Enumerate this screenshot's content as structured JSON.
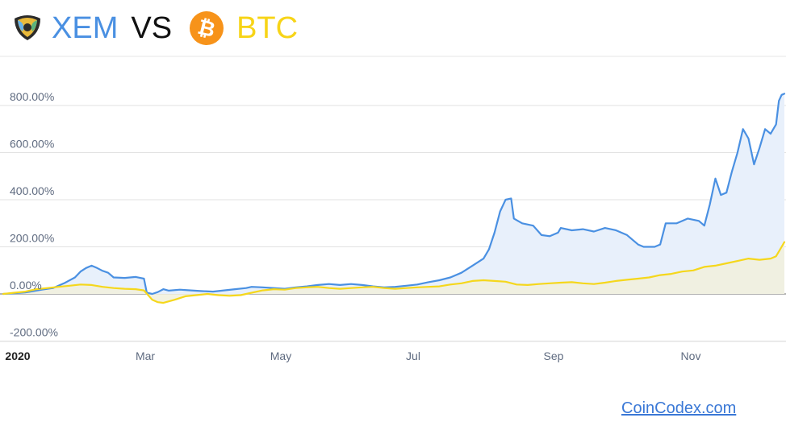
{
  "header": {
    "coin1": {
      "name": "XEM",
      "icon": "nem-xem-logo-icon",
      "color": "#4a90e2"
    },
    "vs": "VS",
    "coin2": {
      "name": "BTC",
      "icon": "bitcoin-logo-icon",
      "color": "#f7931a",
      "text_color": "#f7d417"
    }
  },
  "footer": {
    "link_text": "CoinCodex.com",
    "color": "#3a78d6"
  },
  "chart_data": {
    "type": "area",
    "x_axis": {
      "ticks": [
        "2020",
        "Mar",
        "May",
        "Jul",
        "Sep",
        "Nov"
      ]
    },
    "y_axis": {
      "ticks": [
        "-200.00%",
        "0.00%",
        "200.00%",
        "400.00%",
        "600.00%",
        "800.00%"
      ],
      "range": [
        -200,
        800
      ],
      "unit": "%"
    },
    "grid": true,
    "legend": "none",
    "series": [
      {
        "name": "XEM",
        "color": "#4a90e2",
        "fill": "#e8f0fb",
        "points": [
          [
            0,
            0
          ],
          [
            4,
            3
          ],
          [
            8,
            6
          ],
          [
            10,
            10
          ],
          [
            14,
            18
          ],
          [
            18,
            25
          ],
          [
            22,
            45
          ],
          [
            26,
            70
          ],
          [
            28,
            95
          ],
          [
            30,
            110
          ],
          [
            32,
            120
          ],
          [
            34,
            110
          ],
          [
            36,
            98
          ],
          [
            38,
            90
          ],
          [
            40,
            70
          ],
          [
            44,
            68
          ],
          [
            48,
            72
          ],
          [
            51,
            65
          ],
          [
            52,
            5
          ],
          [
            54,
            0
          ],
          [
            56,
            8
          ],
          [
            58,
            20
          ],
          [
            60,
            14
          ],
          [
            64,
            18
          ],
          [
            68,
            15
          ],
          [
            72,
            12
          ],
          [
            76,
            10
          ],
          [
            80,
            15
          ],
          [
            84,
            20
          ],
          [
            88,
            25
          ],
          [
            90,
            30
          ],
          [
            94,
            28
          ],
          [
            98,
            25
          ],
          [
            102,
            22
          ],
          [
            106,
            28
          ],
          [
            110,
            32
          ],
          [
            114,
            38
          ],
          [
            118,
            42
          ],
          [
            122,
            38
          ],
          [
            126,
            42
          ],
          [
            130,
            38
          ],
          [
            134,
            32
          ],
          [
            138,
            28
          ],
          [
            142,
            30
          ],
          [
            146,
            35
          ],
          [
            150,
            40
          ],
          [
            154,
            50
          ],
          [
            158,
            58
          ],
          [
            162,
            70
          ],
          [
            166,
            90
          ],
          [
            170,
            120
          ],
          [
            174,
            150
          ],
          [
            176,
            190
          ],
          [
            178,
            260
          ],
          [
            180,
            350
          ],
          [
            182,
            400
          ],
          [
            184,
            405
          ],
          [
            185,
            320
          ],
          [
            188,
            300
          ],
          [
            192,
            290
          ],
          [
            195,
            250
          ],
          [
            198,
            245
          ],
          [
            201,
            260
          ],
          [
            202,
            280
          ],
          [
            206,
            270
          ],
          [
            210,
            275
          ],
          [
            214,
            265
          ],
          [
            218,
            280
          ],
          [
            222,
            270
          ],
          [
            226,
            250
          ],
          [
            230,
            210
          ],
          [
            232,
            200
          ],
          [
            236,
            200
          ],
          [
            238,
            210
          ],
          [
            240,
            300
          ],
          [
            244,
            300
          ],
          [
            248,
            320
          ],
          [
            252,
            310
          ],
          [
            254,
            290
          ],
          [
            256,
            380
          ],
          [
            258,
            490
          ],
          [
            260,
            420
          ],
          [
            262,
            430
          ],
          [
            264,
            520
          ],
          [
            266,
            600
          ],
          [
            268,
            700
          ],
          [
            270,
            660
          ],
          [
            272,
            550
          ],
          [
            274,
            620
          ],
          [
            276,
            700
          ],
          [
            278,
            680
          ],
          [
            280,
            720
          ],
          [
            281,
            820
          ],
          [
            282,
            845
          ],
          [
            283,
            850
          ]
        ]
      },
      {
        "name": "BTC",
        "color": "#f5d71c",
        "fill": "#f1f0dc",
        "points": [
          [
            0,
            0
          ],
          [
            4,
            5
          ],
          [
            8,
            10
          ],
          [
            12,
            20
          ],
          [
            16,
            25
          ],
          [
            20,
            30
          ],
          [
            24,
            35
          ],
          [
            28,
            40
          ],
          [
            32,
            38
          ],
          [
            36,
            30
          ],
          [
            40,
            25
          ],
          [
            44,
            22
          ],
          [
            48,
            20
          ],
          [
            51,
            15
          ],
          [
            54,
            -25
          ],
          [
            56,
            -35
          ],
          [
            58,
            -38
          ],
          [
            62,
            -25
          ],
          [
            66,
            -10
          ],
          [
            70,
            -5
          ],
          [
            74,
            0
          ],
          [
            78,
            -5
          ],
          [
            82,
            -8
          ],
          [
            86,
            -5
          ],
          [
            90,
            5
          ],
          [
            94,
            15
          ],
          [
            98,
            20
          ],
          [
            102,
            18
          ],
          [
            106,
            25
          ],
          [
            110,
            28
          ],
          [
            114,
            30
          ],
          [
            118,
            25
          ],
          [
            122,
            22
          ],
          [
            126,
            25
          ],
          [
            130,
            28
          ],
          [
            134,
            30
          ],
          [
            138,
            25
          ],
          [
            142,
            22
          ],
          [
            146,
            25
          ],
          [
            150,
            28
          ],
          [
            154,
            30
          ],
          [
            158,
            32
          ],
          [
            162,
            40
          ],
          [
            166,
            45
          ],
          [
            170,
            55
          ],
          [
            174,
            58
          ],
          [
            178,
            55
          ],
          [
            182,
            52
          ],
          [
            186,
            40
          ],
          [
            190,
            38
          ],
          [
            194,
            42
          ],
          [
            198,
            45
          ],
          [
            202,
            48
          ],
          [
            206,
            50
          ],
          [
            210,
            45
          ],
          [
            214,
            42
          ],
          [
            218,
            48
          ],
          [
            222,
            55
          ],
          [
            226,
            60
          ],
          [
            230,
            65
          ],
          [
            234,
            70
          ],
          [
            238,
            80
          ],
          [
            242,
            85
          ],
          [
            246,
            95
          ],
          [
            250,
            100
          ],
          [
            254,
            115
          ],
          [
            258,
            120
          ],
          [
            262,
            130
          ],
          [
            266,
            140
          ],
          [
            270,
            150
          ],
          [
            274,
            145
          ],
          [
            278,
            150
          ],
          [
            280,
            160
          ],
          [
            282,
            200
          ],
          [
            283,
            220
          ]
        ]
      }
    ]
  }
}
